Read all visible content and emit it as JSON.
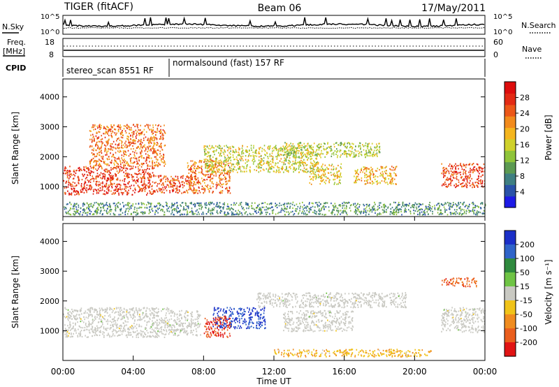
{
  "header": {
    "station": "TIGER (fitACF)",
    "beam": "Beam 06",
    "date": "17/May/2011"
  },
  "top_panels": {
    "nsky_label": "N.Sky",
    "nsearch_label": "N.Search",
    "noise_ticks_left": [
      "10^5",
      "10^0"
    ],
    "noise_ticks_right": [
      "10^5",
      "10^0"
    ],
    "freq_label_1": "Freq.",
    "freq_label_2": "[MHz]",
    "freq_ticks": [
      "18",
      "8"
    ],
    "nave_label": "Nave",
    "nave_ticks": [
      "60",
      "0"
    ],
    "cpid_label": "CPID",
    "cpid_segments": [
      {
        "name": "stereo_scan",
        "id": "8551",
        "mode": "RF",
        "start_h": 0,
        "end_h": 6.0
      },
      {
        "name": "normalsound (fast)",
        "id": "157",
        "mode": "RF",
        "start_h": 6.0,
        "end_h": 24
      }
    ]
  },
  "chart_data": [
    {
      "type": "heatmap",
      "name": "power",
      "ylabel": "Slant Range [km]",
      "ylim": [
        0,
        4600
      ],
      "yticks": [
        "1000",
        "2000",
        "3000",
        "4000"
      ],
      "xlim": [
        0,
        24
      ],
      "colorbar": {
        "label": "Power [dB]",
        "ticks": [
          "4",
          "8",
          "12",
          "16",
          "20",
          "24",
          "28"
        ],
        "colors": [
          "#1d1ae6",
          "#2a52a8",
          "#3f7f82",
          "#5c9a52",
          "#8fc43a",
          "#cfd12b",
          "#f4b51e",
          "#f28a1c",
          "#ec5718",
          "#e32a14",
          "#dd0d0d"
        ]
      },
      "regions": [
        {
          "x": [
            0,
            5.2
          ],
          "y": [
            750,
            1700
          ],
          "level": 28
        },
        {
          "x": [
            1.5,
            5.8
          ],
          "y": [
            1700,
            3100
          ],
          "level": 24
        },
        {
          "x": [
            5.2,
            7.5
          ],
          "y": [
            800,
            1400
          ],
          "level": 26
        },
        {
          "x": [
            7.0,
            9.5
          ],
          "y": [
            800,
            1900
          ],
          "level": 24
        },
        {
          "x": [
            8.0,
            14.5
          ],
          "y": [
            1500,
            2400
          ],
          "level": 16
        },
        {
          "x": [
            12.5,
            18.0
          ],
          "y": [
            2000,
            2500
          ],
          "level": 14
        },
        {
          "x": [
            14.0,
            15.8
          ],
          "y": [
            1100,
            1800
          ],
          "level": 18
        },
        {
          "x": [
            16.5,
            19.0
          ],
          "y": [
            1100,
            1700
          ],
          "level": 20
        },
        {
          "x": [
            21.5,
            24
          ],
          "y": [
            1000,
            1800
          ],
          "level": 28
        },
        {
          "x": [
            0,
            24
          ],
          "y": [
            80,
            500
          ],
          "level": 8
        }
      ]
    },
    {
      "type": "heatmap",
      "name": "velocity",
      "ylabel": "Slant Range [km]",
      "ylim": [
        0,
        4600
      ],
      "yticks": [
        "1000",
        "2000",
        "3000",
        "4000"
      ],
      "xlabel": "Time UT",
      "xticks": [
        "00:00",
        "04:00",
        "08:00",
        "12:00",
        "16:00",
        "20:00",
        "00:00"
      ],
      "xlim": [
        0,
        24
      ],
      "colorbar": {
        "label": "Velocity [m s⁻¹]",
        "ticks": [
          "200",
          "100",
          "50",
          "15",
          "-15",
          "-50",
          "-100",
          "-200"
        ],
        "colors": [
          "#1b2fc8",
          "#2f64c9",
          "#2f8a3e",
          "#6fc445",
          "#c9c9c2",
          "#f0c319",
          "#f08c1f",
          "#ea5e1d",
          "#e11414"
        ]
      },
      "regions": [
        {
          "x": [
            0,
            6.0
          ],
          "y": [
            800,
            1800
          ],
          "level": 0
        },
        {
          "x": [
            6.0,
            7.8
          ],
          "y": [
            850,
            1700
          ],
          "level": 0
        },
        {
          "x": [
            8.5,
            11.5
          ],
          "y": [
            1100,
            1800
          ],
          "level": 180
        },
        {
          "x": [
            8.0,
            9.5
          ],
          "y": [
            800,
            1500
          ],
          "level": -180
        },
        {
          "x": [
            11.0,
            19.5
          ],
          "y": [
            1800,
            2300
          ],
          "level": 0
        },
        {
          "x": [
            12.5,
            16.5
          ],
          "y": [
            1000,
            1700
          ],
          "level": 0
        },
        {
          "x": [
            21.5,
            24
          ],
          "y": [
            950,
            1800
          ],
          "level": 0
        },
        {
          "x": [
            21.5,
            23.5
          ],
          "y": [
            2500,
            2800
          ],
          "level": -150
        },
        {
          "x": [
            12.0,
            21.0
          ],
          "y": [
            150,
            400
          ],
          "level": -60
        }
      ]
    }
  ]
}
